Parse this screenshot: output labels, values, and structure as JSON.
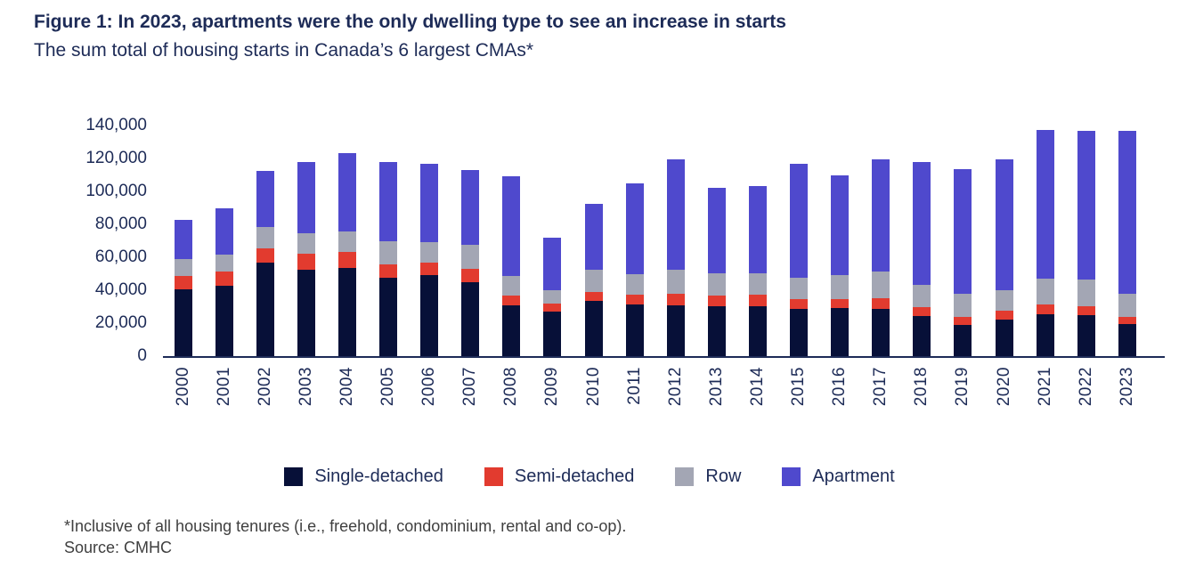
{
  "header": {
    "title": "Figure 1: In 2023, apartments were the only dwelling type to see an increase in starts",
    "subtitle": "The sum total of housing starts in Canada’s 6 largest CMAs*"
  },
  "footer": {
    "footnote": "*Inclusive of all housing tenures (i.e., freehold, condominium, rental and co-op).",
    "source": "Source: CMHC"
  },
  "colors": {
    "text_navy": "#1d2b57",
    "axis_line": "#1d2b57",
    "footnote_gray": "#3f3f3f",
    "single_detached": "#071038",
    "semi_detached": "#e23b2f",
    "row": "#a3a6b4",
    "apartment": "#4f49cd"
  },
  "chart_data": {
    "type": "bar",
    "stacked": true,
    "title": "Figure 1: In 2023, apartments were the only dwelling type to see an increase in starts",
    "subtitle": "The sum total of housing starts in Canada’s 6 largest CMAs*",
    "xlabel": "",
    "ylabel": "",
    "ylim": [
      0,
      140000
    ],
    "yticks": [
      0,
      20000,
      40000,
      60000,
      80000,
      100000,
      120000,
      140000
    ],
    "ytick_labels": [
      "0",
      "20,000",
      "40,000",
      "60,000",
      "80,000",
      "100,000",
      "120,000",
      "140,000"
    ],
    "grid": false,
    "legend_position": "bottom",
    "categories": [
      "2000",
      "2001",
      "2002",
      "2003",
      "2004",
      "2005",
      "2006",
      "2007",
      "2008",
      "2009",
      "2010",
      "2011",
      "2012",
      "2013",
      "2014",
      "2015",
      "2016",
      "2017",
      "2018",
      "2019",
      "2020",
      "2021",
      "2022",
      "2023"
    ],
    "series": [
      {
        "name": "Single-detached",
        "color": "#071038",
        "values": [
          40500,
          42500,
          57000,
          52500,
          53500,
          47500,
          49000,
          45000,
          31000,
          27000,
          33500,
          31500,
          31000,
          30000,
          30000,
          28500,
          29000,
          28500,
          24500,
          19000,
          22000,
          25500,
          25000,
          19500
        ]
      },
      {
        "name": "Semi-detached",
        "color": "#e23b2f",
        "values": [
          8000,
          9000,
          8500,
          9500,
          10000,
          8000,
          8000,
          8000,
          6000,
          5000,
          5500,
          6000,
          7000,
          7000,
          7500,
          6000,
          5500,
          6500,
          5000,
          5000,
          5500,
          6000,
          5000,
          4500
        ]
      },
      {
        "name": "Row",
        "color": "#a3a6b4",
        "values": [
          10500,
          10000,
          13000,
          12500,
          12000,
          14000,
          12000,
          14500,
          11500,
          8000,
          13500,
          12000,
          14500,
          13000,
          13000,
          13000,
          14500,
          16500,
          13500,
          14000,
          12500,
          15500,
          16500,
          14000
        ]
      },
      {
        "name": "Apartment",
        "color": "#4f49cd",
        "values": [
          23500,
          28500,
          34000,
          43500,
          48000,
          48500,
          47500,
          45500,
          60500,
          32000,
          40000,
          55500,
          67000,
          52000,
          53000,
          69500,
          60500,
          68000,
          75000,
          75500,
          79500,
          90500,
          90500,
          98500
        ]
      }
    ]
  }
}
